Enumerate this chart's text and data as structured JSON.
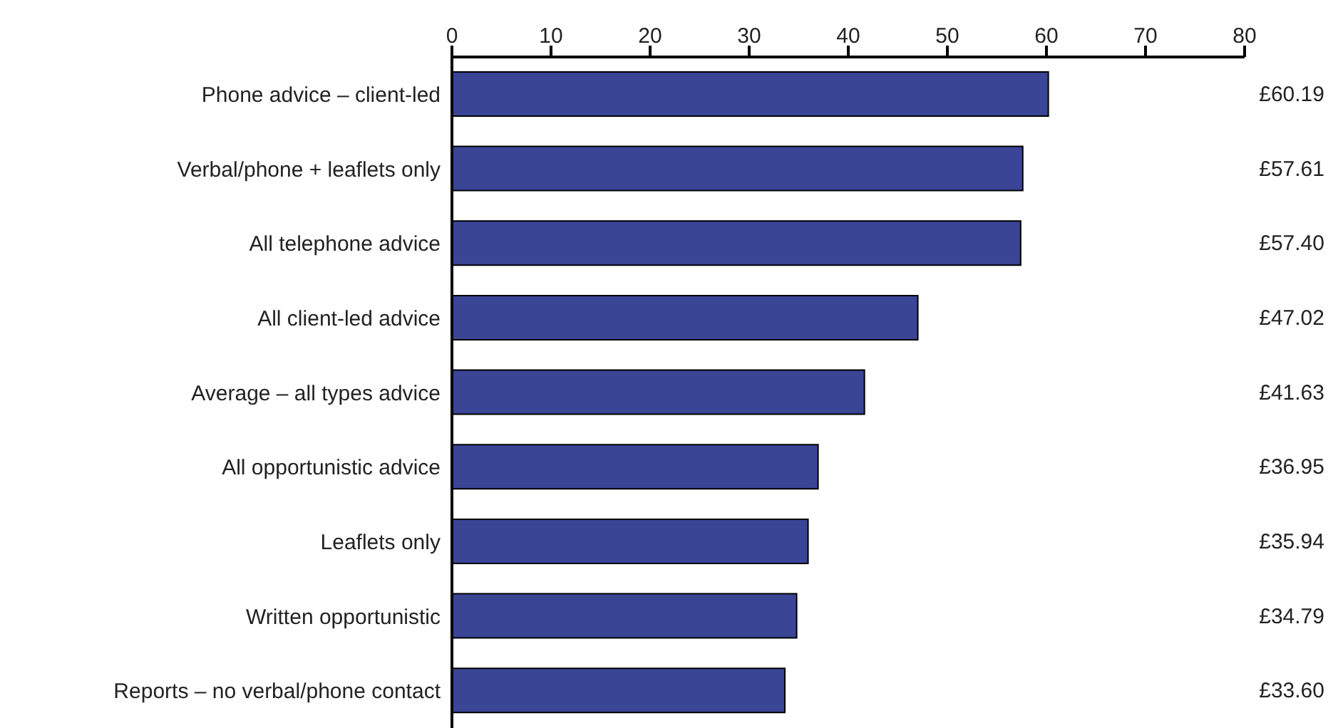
{
  "chart_data": {
    "type": "bar",
    "orientation": "horizontal",
    "categories": [
      "Phone advice – client-led",
      "Verbal/phone + leaflets only",
      "All telephone advice",
      "All client-led advice",
      "Average – all types advice",
      "All opportunistic advice",
      "Leaflets only",
      "Written opportunistic",
      "Reports – no verbal/phone contact"
    ],
    "values": [
      60.19,
      57.61,
      57.4,
      47.02,
      41.63,
      36.95,
      35.94,
      34.79,
      33.6
    ],
    "value_labels": [
      "£60.19",
      "£57.61",
      "£57.40",
      "£47.02",
      "£41.63",
      "£36.95",
      "£35.94",
      "£34.79",
      "£33.60"
    ],
    "color": "#3a4596",
    "xlim": [
      0,
      80
    ],
    "xticks": [
      0,
      10,
      20,
      30,
      40,
      50,
      60,
      70,
      80
    ],
    "grid": false
  }
}
